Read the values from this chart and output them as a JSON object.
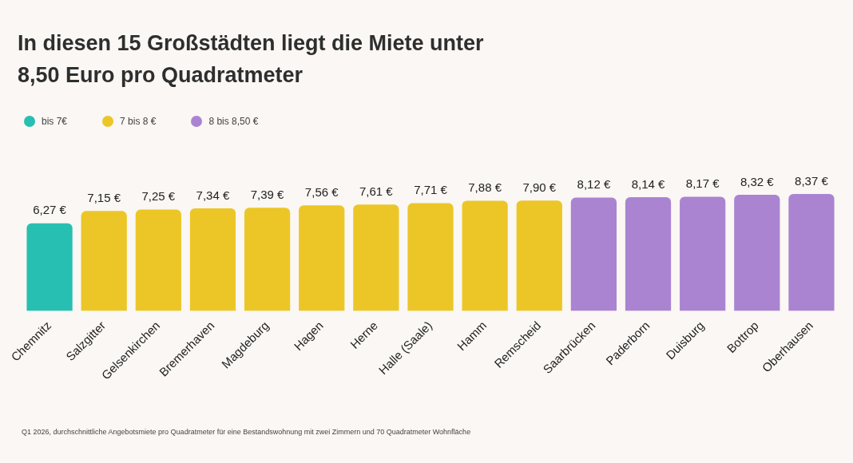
{
  "chart_data": {
    "type": "bar",
    "title": "In diesen 15 Großstädten liegt die Miete unter 8,50 Euro pro Quadratmeter",
    "categories": [
      "Chemnitz",
      "Salzgitter",
      "Gelsenkirchen",
      "Bremerhaven",
      "Magdeburg",
      "Hagen",
      "Herne",
      "Halle (Saale)",
      "Hamm",
      "Remscheid",
      "Saarbrücken",
      "Paderborn",
      "Duisburg",
      "Bottrop",
      "Oberhausen"
    ],
    "series": [
      {
        "name": "bis 7€",
        "color": "#27bfb1",
        "values": [
          6.27,
          null,
          null,
          null,
          null,
          null,
          null,
          null,
          null,
          null,
          null,
          null,
          null,
          null,
          null
        ],
        "value_labels": [
          "6,27 €",
          null,
          null,
          null,
          null,
          null,
          null,
          null,
          null,
          null,
          null,
          null,
          null,
          null,
          null
        ]
      },
      {
        "name": "7 bis 8 €",
        "color": "#ecc627",
        "values": [
          null,
          7.15,
          7.25,
          7.34,
          7.39,
          7.56,
          7.61,
          7.71,
          7.88,
          7.9,
          null,
          null,
          null,
          null,
          null
        ],
        "value_labels": [
          null,
          "7,15 €",
          "7,25 €",
          "7,34 €",
          "7,39 €",
          "7,56 €",
          "7,61 €",
          "7,71 €",
          "7,88 €",
          "7,90 €",
          null,
          null,
          null,
          null,
          null
        ]
      },
      {
        "name": "8 bis 8,50 €",
        "color": "#aa84d1",
        "values": [
          null,
          null,
          null,
          null,
          null,
          null,
          null,
          null,
          null,
          null,
          8.12,
          8.14,
          8.17,
          8.32,
          8.37
        ],
        "value_labels": [
          null,
          null,
          null,
          null,
          null,
          null,
          null,
          null,
          null,
          null,
          "8,12 €",
          "8,14 €",
          "8,17 €",
          "8,32 €",
          "8,37 €"
        ]
      }
    ],
    "legend": "top left",
    "grid": false,
    "annotations": [
      "Q1 2026, durchschnittliche Angebotsmiete pro Quadratmeter für eine Bestandswohnung mit zwei Zimmern und 70 Quadratmeter Wohnfläche"
    ]
  }
}
